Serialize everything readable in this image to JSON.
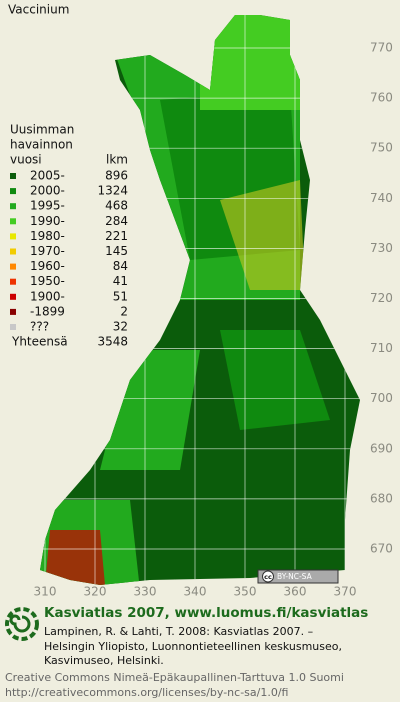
{
  "title": "Vaccinium",
  "legend": {
    "heading": [
      "Uusimman",
      "havainnon",
      "vuosi"
    ],
    "count_heading": "lkm",
    "items": [
      {
        "label": "2005-",
        "count": 896,
        "color": "#0b5c0b"
      },
      {
        "label": "2000-",
        "count": 1324,
        "color": "#0f8a0f"
      },
      {
        "label": "1995-",
        "count": 468,
        "color": "#22aa1e"
      },
      {
        "label": "1990-",
        "count": 284,
        "color": "#44cc22"
      },
      {
        "label": "1980-",
        "count": 221,
        "color": "#e8e800"
      },
      {
        "label": "1970-",
        "count": 145,
        "color": "#f2cc00"
      },
      {
        "label": "1960-",
        "count": 84,
        "color": "#ff8800"
      },
      {
        "label": "1950-",
        "count": 41,
        "color": "#ee3300"
      },
      {
        "label": "1900-",
        "count": 51,
        "color": "#cc0000"
      },
      {
        "label": "-1899",
        "count": 2,
        "color": "#880000"
      },
      {
        "label": "???",
        "count": 32,
        "color": "#c8c8c8"
      }
    ],
    "total_label": "Yhteensä",
    "total": 3548
  },
  "grid": {
    "y_labels": [
      770,
      760,
      750,
      740,
      730,
      720,
      710,
      700,
      690,
      680,
      670
    ],
    "x_labels": [
      310,
      320,
      330,
      340,
      350,
      360,
      370
    ]
  },
  "badge": {
    "icon": "cc",
    "label": "BY-NC-SA"
  },
  "footer": {
    "site": "Kasviatlas 2007, www.luomus.fi/kasviatlas",
    "citation": [
      "Lampinen, R. & Lahti, T. 2008: Kasviatlas 2007. –",
      "Helsingin Yliopisto, Luonnontieteellinen keskusmuseo,",
      "Kasvimuseo, Helsinki."
    ],
    "license": [
      "Creative Commons Nimeä-Epäkaupallinen-Tarttuva 1.0 Suomi",
      "http://creativecommons.org/licenses/by-nc-sa/1.0/fi"
    ]
  }
}
